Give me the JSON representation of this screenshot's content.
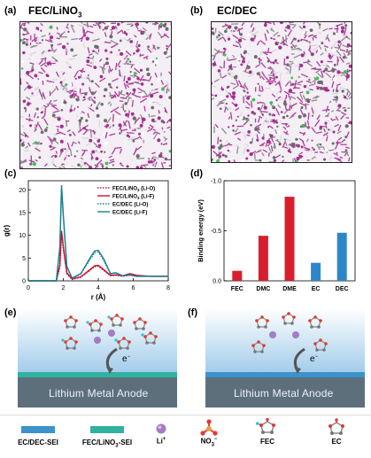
{
  "panels": {
    "a": {
      "label": "(a)",
      "title": "FEC/LiNO",
      "title_sub": "3"
    },
    "b": {
      "label": "(b)",
      "title": "EC/DEC"
    },
    "c": {
      "label": "(c)"
    },
    "d": {
      "label": "(d)"
    },
    "e": {
      "label": "(e)",
      "anode_text": "Lithium Metal Anode",
      "electron": "e",
      "electron_sup": "−"
    },
    "f": {
      "label": "(f)",
      "anode_text": "Lithium Metal Anode",
      "electron": "e",
      "electron_sup": "−"
    }
  },
  "legend": {
    "ec_dec_sei": "EC/DEC-SEI",
    "fec_lino3_sei_a": "FEC/LiNO",
    "fec_lino3_sei_sub": "3",
    "fec_lino3_sei_b": "-SEI",
    "li": "Li",
    "li_sup": "+",
    "no3": "NO",
    "no3_sub": "3",
    "no3_sup": "−",
    "fec": "FEC",
    "ec": "EC"
  },
  "colors": {
    "fec_sei": "#2fb3a0",
    "ec_dec_sei": "#3b93cc",
    "fec_line": "#c8102e",
    "ec_line": "#1b7f8c",
    "bar_red": "#d81e2c",
    "bar_blue": "#2e86c9",
    "li_ion": "#a57bc6"
  },
  "chart_data": [
    {
      "type": "line",
      "panel": "c",
      "xlabel": "r (Å)",
      "ylabel": "g(r)",
      "xlim": [
        0,
        8
      ],
      "ylim": [
        0,
        22
      ],
      "xticks": [
        0,
        2,
        4,
        6,
        8
      ],
      "yticks": [
        0,
        5,
        10,
        15,
        20
      ],
      "series": [
        {
          "name": "FEC/LiNO3 (Li-O)",
          "name_main": "FEC/LiNO",
          "name_sub": "3",
          "name_tail": " (Li-O)",
          "color": "#c8102e",
          "dash": "dotted",
          "x": [
            0,
            1.6,
            1.8,
            1.9,
            2.0,
            2.2,
            2.5,
            3.0,
            3.5,
            3.8,
            4.0,
            4.3,
            4.7,
            5.0,
            5.4,
            5.8,
            6.2,
            7.0,
            8.0
          ],
          "y": [
            0,
            0,
            3.0,
            10.5,
            7.0,
            1.5,
            0.3,
            0.8,
            2.2,
            3.1,
            3.2,
            2.3,
            1.1,
            1.2,
            1.0,
            1.3,
            1.1,
            1.0,
            1.0
          ]
        },
        {
          "name": "FEC/LiNO3 (Li-F)",
          "name_main": "FEC/LiNO",
          "name_sub": "3",
          "name_tail": " (Li-F)",
          "color": "#c8102e",
          "dash": "solid",
          "x": [
            0,
            1.6,
            1.8,
            1.9,
            2.0,
            2.2,
            2.5,
            3.0,
            3.5,
            3.8,
            4.0,
            4.3,
            4.7,
            5.0,
            5.4,
            5.8,
            6.2,
            7.0,
            8.0
          ],
          "y": [
            0,
            0,
            3.5,
            11.0,
            7.5,
            1.8,
            0.4,
            0.9,
            2.4,
            3.3,
            3.4,
            2.5,
            1.2,
            1.3,
            1.1,
            1.6,
            1.2,
            1.0,
            1.0
          ]
        },
        {
          "name": "EC/DEC (Li-O)",
          "name_main": "EC/DEC (Li-O)",
          "name_sub": "",
          "name_tail": "",
          "color": "#1b7f8c",
          "dash": "dotted",
          "x": [
            0,
            1.6,
            1.8,
            1.9,
            2.0,
            2.2,
            2.5,
            3.0,
            3.5,
            3.8,
            4.0,
            4.3,
            4.7,
            5.0,
            5.4,
            5.8,
            6.2,
            7.0,
            8.0
          ],
          "y": [
            0,
            0,
            7.0,
            20.0,
            14.0,
            3.0,
            0.5,
            1.5,
            4.5,
            6.2,
            6.3,
            4.6,
            1.5,
            1.7,
            1.0,
            1.2,
            1.0,
            1.0,
            1.0
          ]
        },
        {
          "name": "EC/DEC (Li-F)",
          "name_main": "EC/DEC (Li-F)",
          "name_sub": "",
          "name_tail": "",
          "color": "#1b7f8c",
          "dash": "solid",
          "x": [
            0,
            1.6,
            1.8,
            1.9,
            2.0,
            2.2,
            2.5,
            3.0,
            3.5,
            3.8,
            4.0,
            4.3,
            4.7,
            5.0,
            5.4,
            5.8,
            6.2,
            7.0,
            8.0
          ],
          "y": [
            0,
            0,
            7.5,
            21.0,
            14.5,
            3.2,
            0.6,
            1.6,
            4.8,
            6.6,
            6.7,
            4.9,
            1.6,
            1.8,
            1.1,
            1.3,
            1.0,
            1.0,
            1.0
          ]
        }
      ]
    },
    {
      "type": "bar",
      "panel": "d",
      "ylabel": "Binding energy (eV)",
      "categories": [
        "FEC",
        "DMC",
        "DME",
        "EC",
        "DEC"
      ],
      "values": [
        -0.1,
        -0.45,
        -0.84,
        -0.18,
        -0.48
      ],
      "bar_colors": [
        "red",
        "red",
        "red",
        "blue",
        "blue"
      ],
      "ylim": [
        0,
        -1.0
      ],
      "yticks": [
        "0.0",
        "-0.5",
        "-1.0"
      ]
    }
  ]
}
